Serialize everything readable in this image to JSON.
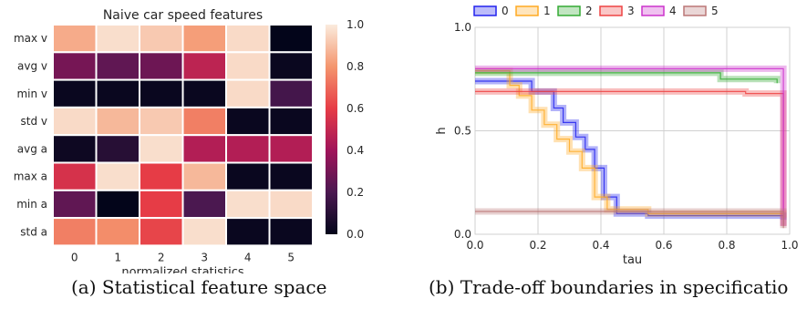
{
  "chart_data": [
    {
      "type": "heatmap",
      "title": "Naive car speed features",
      "xlabel": "normalized statistics",
      "ylabel": "",
      "x_categories": [
        "0",
        "1",
        "2",
        "3",
        "4",
        "5"
      ],
      "y_categories": [
        "max v",
        "avg v",
        "min v",
        "std v",
        "avg a",
        "max a",
        "min a",
        "std a"
      ],
      "values": [
        [
          0.85,
          0.97,
          0.92,
          0.82,
          0.96,
          0.0
        ],
        [
          0.3,
          0.25,
          0.28,
          0.48,
          0.96,
          0.02
        ],
        [
          0.02,
          0.02,
          0.02,
          0.02,
          0.96,
          0.18
        ],
        [
          0.96,
          0.88,
          0.92,
          0.75,
          0.02,
          0.02
        ],
        [
          0.03,
          0.1,
          0.97,
          0.45,
          0.45,
          0.45
        ],
        [
          0.55,
          0.97,
          0.6,
          0.88,
          0.02,
          0.02
        ],
        [
          0.25,
          0.0,
          0.6,
          0.2,
          0.97,
          0.96
        ],
        [
          0.75,
          0.78,
          0.62,
          0.97,
          0.02,
          0.02
        ]
      ],
      "colorbar": {
        "ticks": [
          "0.0",
          "0.2",
          "0.4",
          "0.6",
          "0.8",
          "1.0"
        ],
        "range": [
          0,
          1
        ]
      }
    },
    {
      "type": "line",
      "title": "",
      "xlabel": "tau",
      "ylabel": "h",
      "xlim": [
        0,
        1
      ],
      "ylim": [
        0,
        1
      ],
      "xticks": [
        "0.0",
        "0.2",
        "0.4",
        "0.6",
        "0.8",
        "1.0"
      ],
      "yticks": [
        "0.0",
        "0.5",
        "1.0"
      ],
      "grid": true,
      "legend": "top",
      "series": [
        {
          "name": "0",
          "color": "#2222ee",
          "points": [
            [
              0.0,
              0.74
            ],
            [
              0.18,
              0.74
            ],
            [
              0.18,
              0.69
            ],
            [
              0.25,
              0.69
            ],
            [
              0.25,
              0.61
            ],
            [
              0.28,
              0.61
            ],
            [
              0.28,
              0.54
            ],
            [
              0.32,
              0.54
            ],
            [
              0.32,
              0.47
            ],
            [
              0.35,
              0.47
            ],
            [
              0.35,
              0.41
            ],
            [
              0.38,
              0.41
            ],
            [
              0.38,
              0.32
            ],
            [
              0.41,
              0.32
            ],
            [
              0.41,
              0.18
            ],
            [
              0.45,
              0.18
            ],
            [
              0.45,
              0.1
            ],
            [
              0.55,
              0.1
            ],
            [
              0.55,
              0.09
            ],
            [
              0.98,
              0.09
            ],
            [
              0.98,
              0.07
            ]
          ]
        },
        {
          "name": "1",
          "color": "#ffaa22",
          "points": [
            [
              0.0,
              0.79
            ],
            [
              0.11,
              0.79
            ],
            [
              0.11,
              0.72
            ],
            [
              0.14,
              0.72
            ],
            [
              0.14,
              0.67
            ],
            [
              0.18,
              0.67
            ],
            [
              0.18,
              0.6
            ],
            [
              0.22,
              0.6
            ],
            [
              0.22,
              0.53
            ],
            [
              0.26,
              0.53
            ],
            [
              0.26,
              0.46
            ],
            [
              0.3,
              0.46
            ],
            [
              0.3,
              0.4
            ],
            [
              0.34,
              0.4
            ],
            [
              0.34,
              0.32
            ],
            [
              0.38,
              0.32
            ],
            [
              0.38,
              0.18
            ],
            [
              0.42,
              0.18
            ],
            [
              0.42,
              0.12
            ],
            [
              0.55,
              0.12
            ],
            [
              0.55,
              0.1
            ],
            [
              0.98,
              0.1
            ],
            [
              0.98,
              0.08
            ]
          ]
        },
        {
          "name": "2",
          "color": "#33aa33",
          "points": [
            [
              0.0,
              0.78
            ],
            [
              0.78,
              0.78
            ],
            [
              0.78,
              0.75
            ],
            [
              0.96,
              0.75
            ],
            [
              0.96,
              0.73
            ]
          ]
        },
        {
          "name": "3",
          "color": "#ee4444",
          "points": [
            [
              0.0,
              0.69
            ],
            [
              0.86,
              0.69
            ],
            [
              0.86,
              0.68
            ],
            [
              0.98,
              0.68
            ],
            [
              0.98,
              0.04
            ]
          ]
        },
        {
          "name": "4",
          "color": "#cc33cc",
          "points": [
            [
              0.0,
              0.8
            ],
            [
              0.98,
              0.8
            ],
            [
              0.98,
              0.04
            ]
          ]
        },
        {
          "name": "5",
          "color": "#bb7777",
          "points": [
            [
              0.0,
              0.11
            ],
            [
              0.98,
              0.11
            ],
            [
              0.98,
              0.03
            ]
          ]
        }
      ]
    }
  ],
  "captions": {
    "a": "(a) Statistical feature space",
    "b": "(b) Trade-off boundaries in specificatio"
  }
}
